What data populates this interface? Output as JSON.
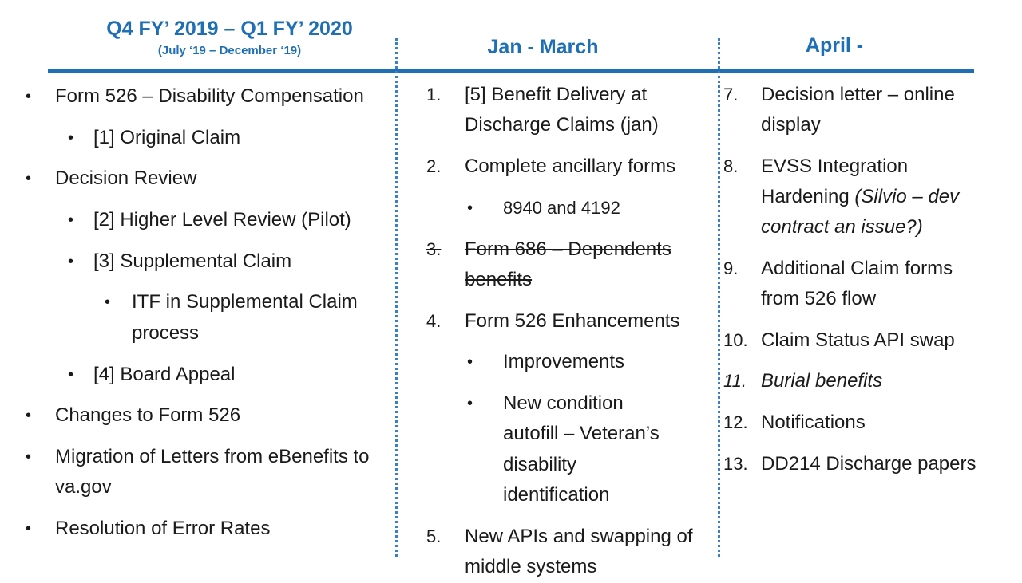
{
  "headers": {
    "col1_title": "Q4 FY’ 2019 – Q1 FY’ 2020",
    "col1_subtitle": "(July ‘19 – December ‘19)",
    "col2_title": "Jan - March",
    "col3_title": "April -"
  },
  "col1": {
    "items": [
      {
        "text": "Form 526 – Disability Compensation"
      },
      {
        "text": "[1] Original Claim"
      },
      {
        "text": "Decision Review"
      },
      {
        "text": "[2] Higher Level Review (Pilot)"
      },
      {
        "text": "[3] Supplemental Claim"
      },
      {
        "line1": "ITF in Supplemental Claim",
        "line2": "process"
      },
      {
        "text": "[4] Board Appeal"
      },
      {
        "text": "Changes to Form 526"
      },
      {
        "line1": "Migration of Letters from eBenefits to",
        "line2": "va.gov"
      },
      {
        "text": "Resolution of Error Rates"
      }
    ]
  },
  "col2": {
    "items": [
      {
        "num": "1.",
        "line1": "[5] Benefit Delivery at",
        "line2": "Discharge Claims (jan)"
      },
      {
        "num": "2.",
        "line1": "Complete ancillary forms"
      },
      {
        "text": "8940 and 4192"
      },
      {
        "num": "3.",
        "line1": "Form 686 – Dependents",
        "line2": "benefits"
      },
      {
        "num": "4.",
        "line1": "Form 526 Enhancements"
      },
      {
        "text": "Improvements"
      },
      {
        "line1": "New condition",
        "line2": "autofill – Veteran’s",
        "line3": "disability",
        "line4": "identification"
      },
      {
        "num": "5.",
        "line1": "New APIs and swapping of",
        "line2": "middle systems"
      }
    ]
  },
  "col3": {
    "items": [
      {
        "num": "7.",
        "line1": "Decision letter – online",
        "line2": "display"
      },
      {
        "num": "8.",
        "line1": "EVSS Integration",
        "line2_a": "Hardening ",
        "line2_b": "(Silvio – dev",
        "line3": "contract an issue?)"
      },
      {
        "num": "9.",
        "line1": "Additional Claim forms",
        "line2": "from 526 flow"
      },
      {
        "num": "10.",
        "line1": "Claim Status API swap"
      },
      {
        "num": "11.",
        "line1": "Burial benefits"
      },
      {
        "num": "12.",
        "line1": "Notifications"
      },
      {
        "num": "13.",
        "line1": "DD214 Discharge papers"
      }
    ]
  },
  "colors": {
    "accent": "#1f6fb5"
  }
}
